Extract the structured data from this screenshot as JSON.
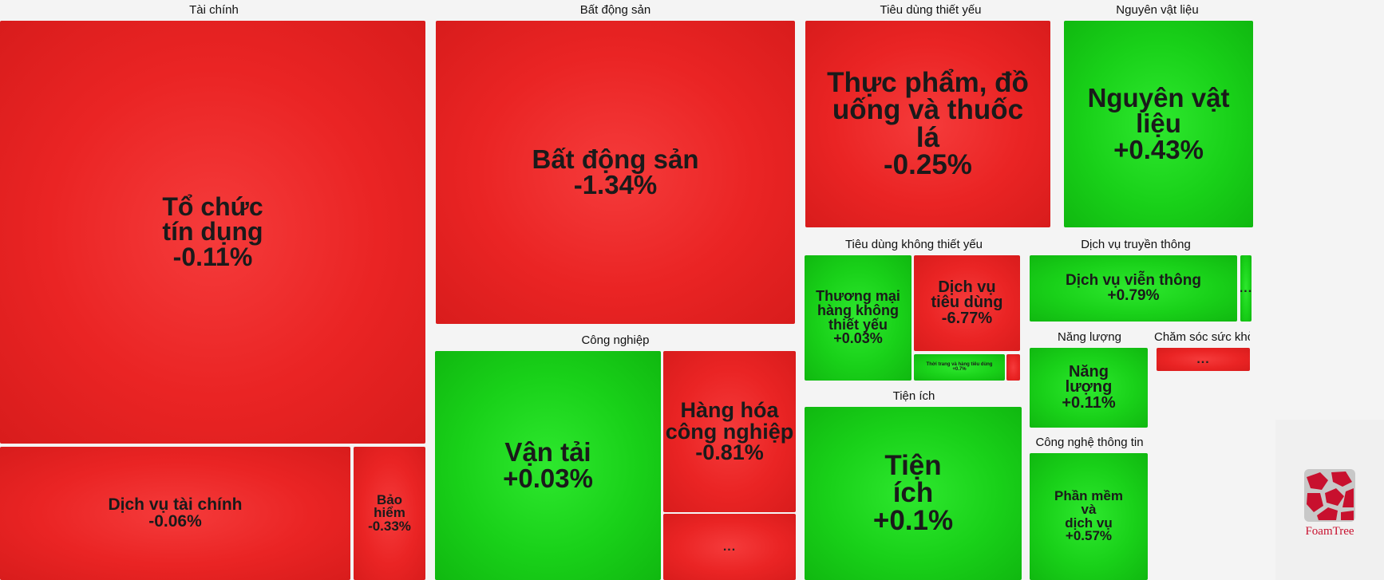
{
  "chart_data": {
    "type": "treemap",
    "colors": {
      "up": "#19d119",
      "down": "#ea2424"
    },
    "groups": [
      {
        "id": "tai-chinh",
        "title": "Tài chính",
        "items": [
          {
            "label": "Tổ chức tín dụng",
            "value": "-0.11%",
            "change": -0.11
          },
          {
            "label": "Dịch vụ tài chính",
            "value": "-0.06%",
            "change": -0.06
          },
          {
            "label": "Bảo hiểm",
            "value": "-0.33%",
            "change": -0.33
          }
        ]
      },
      {
        "id": "bat-dong-san",
        "title": "Bất động sản",
        "items": [
          {
            "label": "Bất động sản",
            "value": "-1.34%",
            "change": -1.34
          }
        ]
      },
      {
        "id": "cong-nghiep",
        "title": "Công nghiệp",
        "items": [
          {
            "label": "Vận tải",
            "value": "+0.03%",
            "change": 0.03
          },
          {
            "label": "Hàng hóa công nghiệp",
            "value": "-0.81%",
            "change": -0.81
          },
          {
            "label": "",
            "value": "...",
            "change": -0.5
          }
        ]
      },
      {
        "id": "tieu-dung-thiet-yeu",
        "title": "Tiêu dùng thiết yếu",
        "items": [
          {
            "label": "Thực phẩm, đồ uống và thuốc lá",
            "value": "-0.25%",
            "change": -0.25
          }
        ]
      },
      {
        "id": "nguyen-vat-lieu",
        "title": "Nguyên vật liệu",
        "items": [
          {
            "label": "Nguyên vật liệu",
            "value": "+0.43%",
            "change": 0.43
          }
        ]
      },
      {
        "id": "tieu-dung-khong-thiet-yeu",
        "title": "Tiêu dùng không thiết yếu",
        "items": [
          {
            "label": "Thương mại hàng không thiết yếu",
            "value": "+0.03%",
            "change": 0.03
          },
          {
            "label": "Dịch vụ tiêu dùng",
            "value": "-6.77%",
            "change": -6.77
          },
          {
            "label": "Thời trang và hàng tiêu dùng",
            "value": "+0.7%",
            "change": 0.7
          },
          {
            "label": "",
            "value": "",
            "change": -0.5
          }
        ]
      },
      {
        "id": "dich-vu-truyen-thong",
        "title": "Dịch vụ truyền thông",
        "items": [
          {
            "label": "Dịch vụ viễn thông",
            "value": "+0.79%",
            "change": 0.79
          },
          {
            "label": "",
            "value": "...",
            "change": 0.5
          }
        ]
      },
      {
        "id": "nang-luong",
        "title": "Năng lượng",
        "items": [
          {
            "label": "Năng lượng",
            "value": "+0.11%",
            "change": 0.11
          }
        ]
      },
      {
        "id": "cham-soc-suc-khoe",
        "title": "Chăm sóc sức khỏe",
        "items": [
          {
            "label": "",
            "value": "...",
            "change": -0.5
          }
        ]
      },
      {
        "id": "tien-ich",
        "title": "Tiện ích",
        "items": [
          {
            "label": "Tiện ích",
            "value": "+0.1%",
            "change": 0.1
          }
        ]
      },
      {
        "id": "cong-nghe-thong-tin",
        "title": "Công nghệ thông tin",
        "items": [
          {
            "label": "Phần mềm và dịch vụ",
            "value": "+0.57%",
            "change": 0.57
          }
        ]
      }
    ]
  },
  "branding": {
    "logo_text": "FoamTree",
    "logo_icon": "foamtree-logo-icon",
    "logo_color": "#c8102e"
  }
}
